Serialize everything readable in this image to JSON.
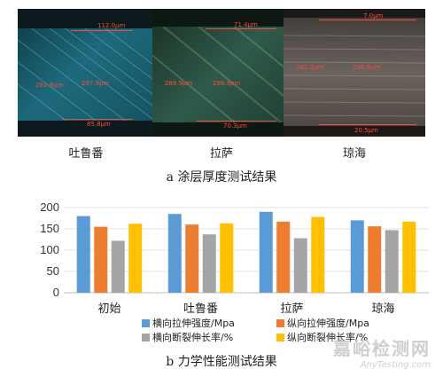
{
  "figure_a": {
    "title": "a 涂层厚度测试结果",
    "panels": [
      {
        "caption": "吐鲁番",
        "measurements": [
          "112.0μm",
          "282.8μm",
          "297.9μm",
          "85.8μm"
        ]
      },
      {
        "caption": "拉萨",
        "measurements": [
          "71.4μm",
          "289.9μm",
          "288.9μm",
          "70.3μm"
        ]
      },
      {
        "caption": "琼海",
        "measurements": [
          "7.0μm",
          "282.2μm",
          "256.0μm",
          "20.5μm"
        ]
      }
    ]
  },
  "figure_b": {
    "title": "b 力学性能测试结果"
  },
  "chart_data": {
    "type": "bar",
    "categories": [
      "初始",
      "吐鲁番",
      "拉萨",
      "琼海"
    ],
    "series": [
      {
        "name": "横向拉伸强度/Mpa",
        "color": "#5b9bd5",
        "values": [
          180,
          185,
          190,
          170
        ]
      },
      {
        "name": "纵向拉伸强度/Mpa",
        "color": "#ed7d31",
        "values": [
          155,
          160,
          167,
          156
        ]
      },
      {
        "name": "横向断裂伸长率/%",
        "color": "#a5a5a5",
        "values": [
          122,
          137,
          128,
          147
        ]
      },
      {
        "name": "纵向断裂伸长率/%",
        "color": "#ffc000",
        "values": [
          162,
          163,
          178,
          167
        ]
      }
    ],
    "ylim": [
      0,
      200
    ],
    "yticks": [
      0,
      50,
      100,
      150,
      200
    ],
    "grid": true,
    "legend_position": "bottom"
  },
  "watermark": {
    "line1": "嘉峪检测网",
    "line2": "AnyTesting.com"
  }
}
